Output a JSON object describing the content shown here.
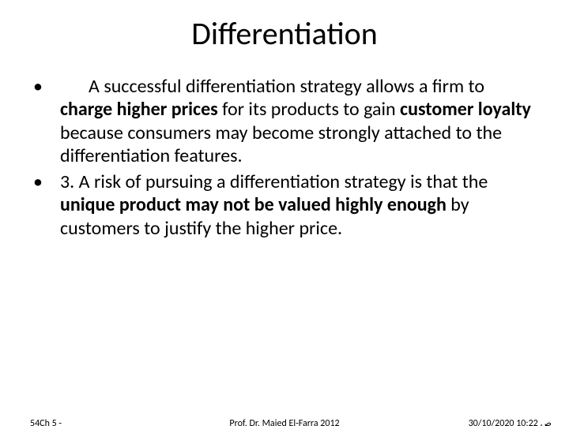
{
  "title": "Differentiation",
  "bullets": [
    {
      "leadingGap": true,
      "runs": [
        {
          "t": "A successful differentiation strategy allows a firm to ",
          "b": false
        },
        {
          "t": "charge higher prices",
          "b": true
        },
        {
          "t": " for its products to gain ",
          "b": false
        },
        {
          "t": "customer loyalty",
          "b": true
        },
        {
          "t": " because consumers may become strongly attached to the differentiation features.",
          "b": false
        }
      ]
    },
    {
      "leadingGap": false,
      "runs": [
        {
          "t": "3.    A risk of pursuing a differentiation strategy is that the ",
          "b": false
        },
        {
          "t": "unique product may not be valued highly enough",
          "b": true
        },
        {
          "t": " by customers to justify the higher price.",
          "b": false
        }
      ]
    }
  ],
  "footer": {
    "left": "54Ch 5 -",
    "center": "Prof. Dr. Majed El-Farra 2012",
    "right": "ص 10:22 30/10/2020"
  },
  "style": {
    "background": "#ffffff",
    "textColor": "#000000",
    "titleFontSize": 40,
    "bodyFontSize": 24,
    "footerFontSize": 12
  }
}
